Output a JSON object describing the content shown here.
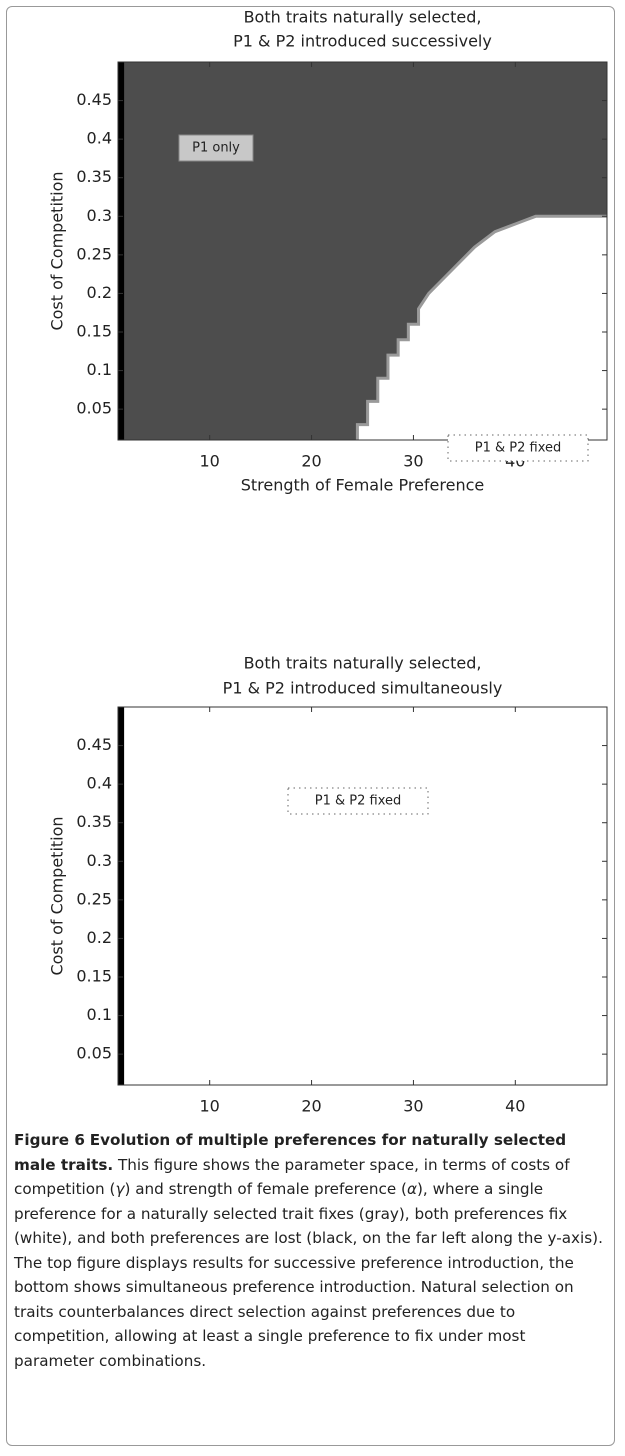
{
  "chart_data": [
    {
      "type": "region",
      "title": [
        "Both traits naturally selected,",
        "P1 & P2 introduced successively"
      ],
      "xlabel": "Strength of Female Preference",
      "ylabel": "Cost of Competition",
      "xlim": [
        1,
        49
      ],
      "ylim": [
        0.01,
        0.5
      ],
      "xticks": [
        10,
        20,
        30,
        40
      ],
      "yticks": [
        0.05,
        0.1,
        0.15,
        0.2,
        0.25,
        0.3,
        0.35,
        0.4,
        0.45
      ],
      "colors": {
        "single": "#4d4d4d",
        "both": "#ffffff",
        "lost": "#000000"
      },
      "lost_xmax": 1.6,
      "boundary": {
        "x": [
          24.5,
          24.5,
          25.5,
          25.5,
          26.5,
          26.5,
          27.5,
          27.5,
          28.5,
          28.5,
          29.5,
          29.5,
          30.5,
          30.5,
          31.5,
          33,
          34.5,
          36,
          38,
          40,
          41,
          42,
          49
        ],
        "y": [
          0.01,
          0.03,
          0.03,
          0.06,
          0.06,
          0.09,
          0.09,
          0.12,
          0.12,
          0.14,
          0.14,
          0.16,
          0.16,
          0.18,
          0.2,
          0.22,
          0.24,
          0.26,
          0.28,
          0.29,
          0.295,
          0.3,
          0.3
        ]
      },
      "annotations": [
        "P1 only",
        "P1 & P2 fixed"
      ]
    },
    {
      "type": "region",
      "title": [
        "Both traits naturally selected,",
        "P1 & P2 introduced simultaneously"
      ],
      "xlabel": "Strength of Female Preference",
      "ylabel": "Cost of Competition",
      "xlim": [
        1,
        49
      ],
      "ylim": [
        0.01,
        0.5
      ],
      "xticks": [
        10,
        20,
        30,
        40
      ],
      "yticks": [
        0.05,
        0.1,
        0.15,
        0.2,
        0.25,
        0.3,
        0.35,
        0.4,
        0.45
      ],
      "colors": {
        "single": "#4d4d4d",
        "both": "#ffffff",
        "lost": "#000000"
      },
      "lost_xmax": 1.6,
      "annotations": [
        "P1 & P2 fixed"
      ]
    }
  ],
  "caption": {
    "label": "Figure 6",
    "title": "Evolution of multiple preferences for naturally selected male traits.",
    "body": [
      "This figure shows the parameter space, in terms of costs of competition (",
      "γ",
      ") and strength of female preference (",
      "α",
      "), where a single preference for a naturally selected trait fixes (gray), both preferences fix (white), and both preferences are lost (black, on the far left along the y-axis). The top figure displays results for successive preference introduction, the bottom shows simultaneous preference introduction. Natural selection on traits counterbalances direct selection against preferences due to competition, allowing at least a single preference to fix under most parameter combinations."
    ]
  }
}
